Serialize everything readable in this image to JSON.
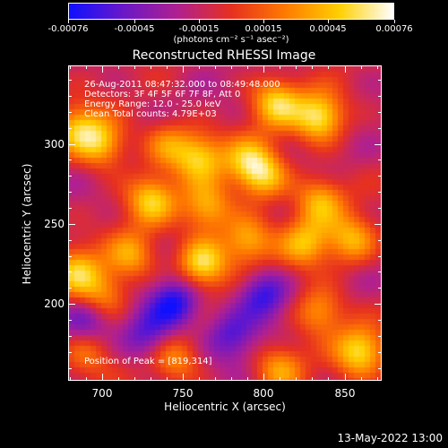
{
  "colorbar": {
    "labels": [
      "-0.00076",
      "-0.00045",
      "-0.00015",
      "0.00015",
      "0.00045",
      "0.00076"
    ],
    "unit_text": "(photons cm⁻² s⁻¹ asec⁻²)",
    "range": [
      -0.00076,
      0.00076
    ],
    "colors": [
      "#1010ff",
      "#6a18c8",
      "#b02090",
      "#e63020",
      "#ff7a00",
      "#ffd000",
      "#ffffff"
    ]
  },
  "chart_data": {
    "type": "heatmap",
    "title": "Reconstructed RHESSI Image",
    "xlabel": "Heliocentric X (arcsec)",
    "ylabel": "Heliocentric Y (arcsec)",
    "xlim": [
      679,
      873
    ],
    "ylim": [
      152,
      349
    ],
    "xticks": [
      "700",
      "750",
      "800",
      "850"
    ],
    "yticks": [
      "200",
      "250",
      "300"
    ],
    "annotations": [
      "26-Aug-2011 08:47:32.000 to 08:49:48.000",
      "Detectors: 3F 4F 5F 6F 7F 8F, Att 0",
      "Energy Range: 12.0 - 25.0 keV",
      "Clean     Total counts: 4.79E+03"
    ],
    "peak_text": "Position of Peak = [819,314]",
    "peak": [
      819,
      314
    ],
    "hotspots": [
      {
        "x": 835,
        "y": 317,
        "v": 1.0
      },
      {
        "x": 808,
        "y": 326,
        "v": 0.85
      },
      {
        "x": 760,
        "y": 292,
        "v": 0.8
      },
      {
        "x": 685,
        "y": 310,
        "v": 0.7
      },
      {
        "x": 700,
        "y": 300,
        "v": 0.75
      },
      {
        "x": 730,
        "y": 265,
        "v": 0.8
      },
      {
        "x": 765,
        "y": 260,
        "v": 0.75
      },
      {
        "x": 800,
        "y": 280,
        "v": 0.8
      },
      {
        "x": 835,
        "y": 265,
        "v": 0.7
      },
      {
        "x": 718,
        "y": 230,
        "v": 0.65
      },
      {
        "x": 762,
        "y": 225,
        "v": 1.0
      },
      {
        "x": 684,
        "y": 220,
        "v": 0.75
      },
      {
        "x": 790,
        "y": 240,
        "v": 0.75
      },
      {
        "x": 855,
        "y": 240,
        "v": 0.7
      },
      {
        "x": 826,
        "y": 238,
        "v": 0.7
      },
      {
        "x": 700,
        "y": 205,
        "v": 0.6
      },
      {
        "x": 835,
        "y": 195,
        "v": 0.7
      },
      {
        "x": 860,
        "y": 170,
        "v": 0.9
      },
      {
        "x": 810,
        "y": 160,
        "v": 0.65
      },
      {
        "x": 745,
        "y": 165,
        "v": 0.55
      },
      {
        "x": 690,
        "y": 170,
        "v": 0.5
      },
      {
        "x": 790,
        "y": 290,
        "v": 0.6
      },
      {
        "x": 740,
        "y": 300,
        "v": 0.55
      }
    ],
    "coldspots": [
      {
        "x": 745,
        "y": 200,
        "v": -0.8
      },
      {
        "x": 800,
        "y": 205,
        "v": -0.7
      },
      {
        "x": 728,
        "y": 180,
        "v": -0.6
      },
      {
        "x": 690,
        "y": 188,
        "v": -0.5
      },
      {
        "x": 780,
        "y": 180,
        "v": -0.55
      }
    ]
  },
  "footer": {
    "date": "13-May-2022 13:00"
  }
}
